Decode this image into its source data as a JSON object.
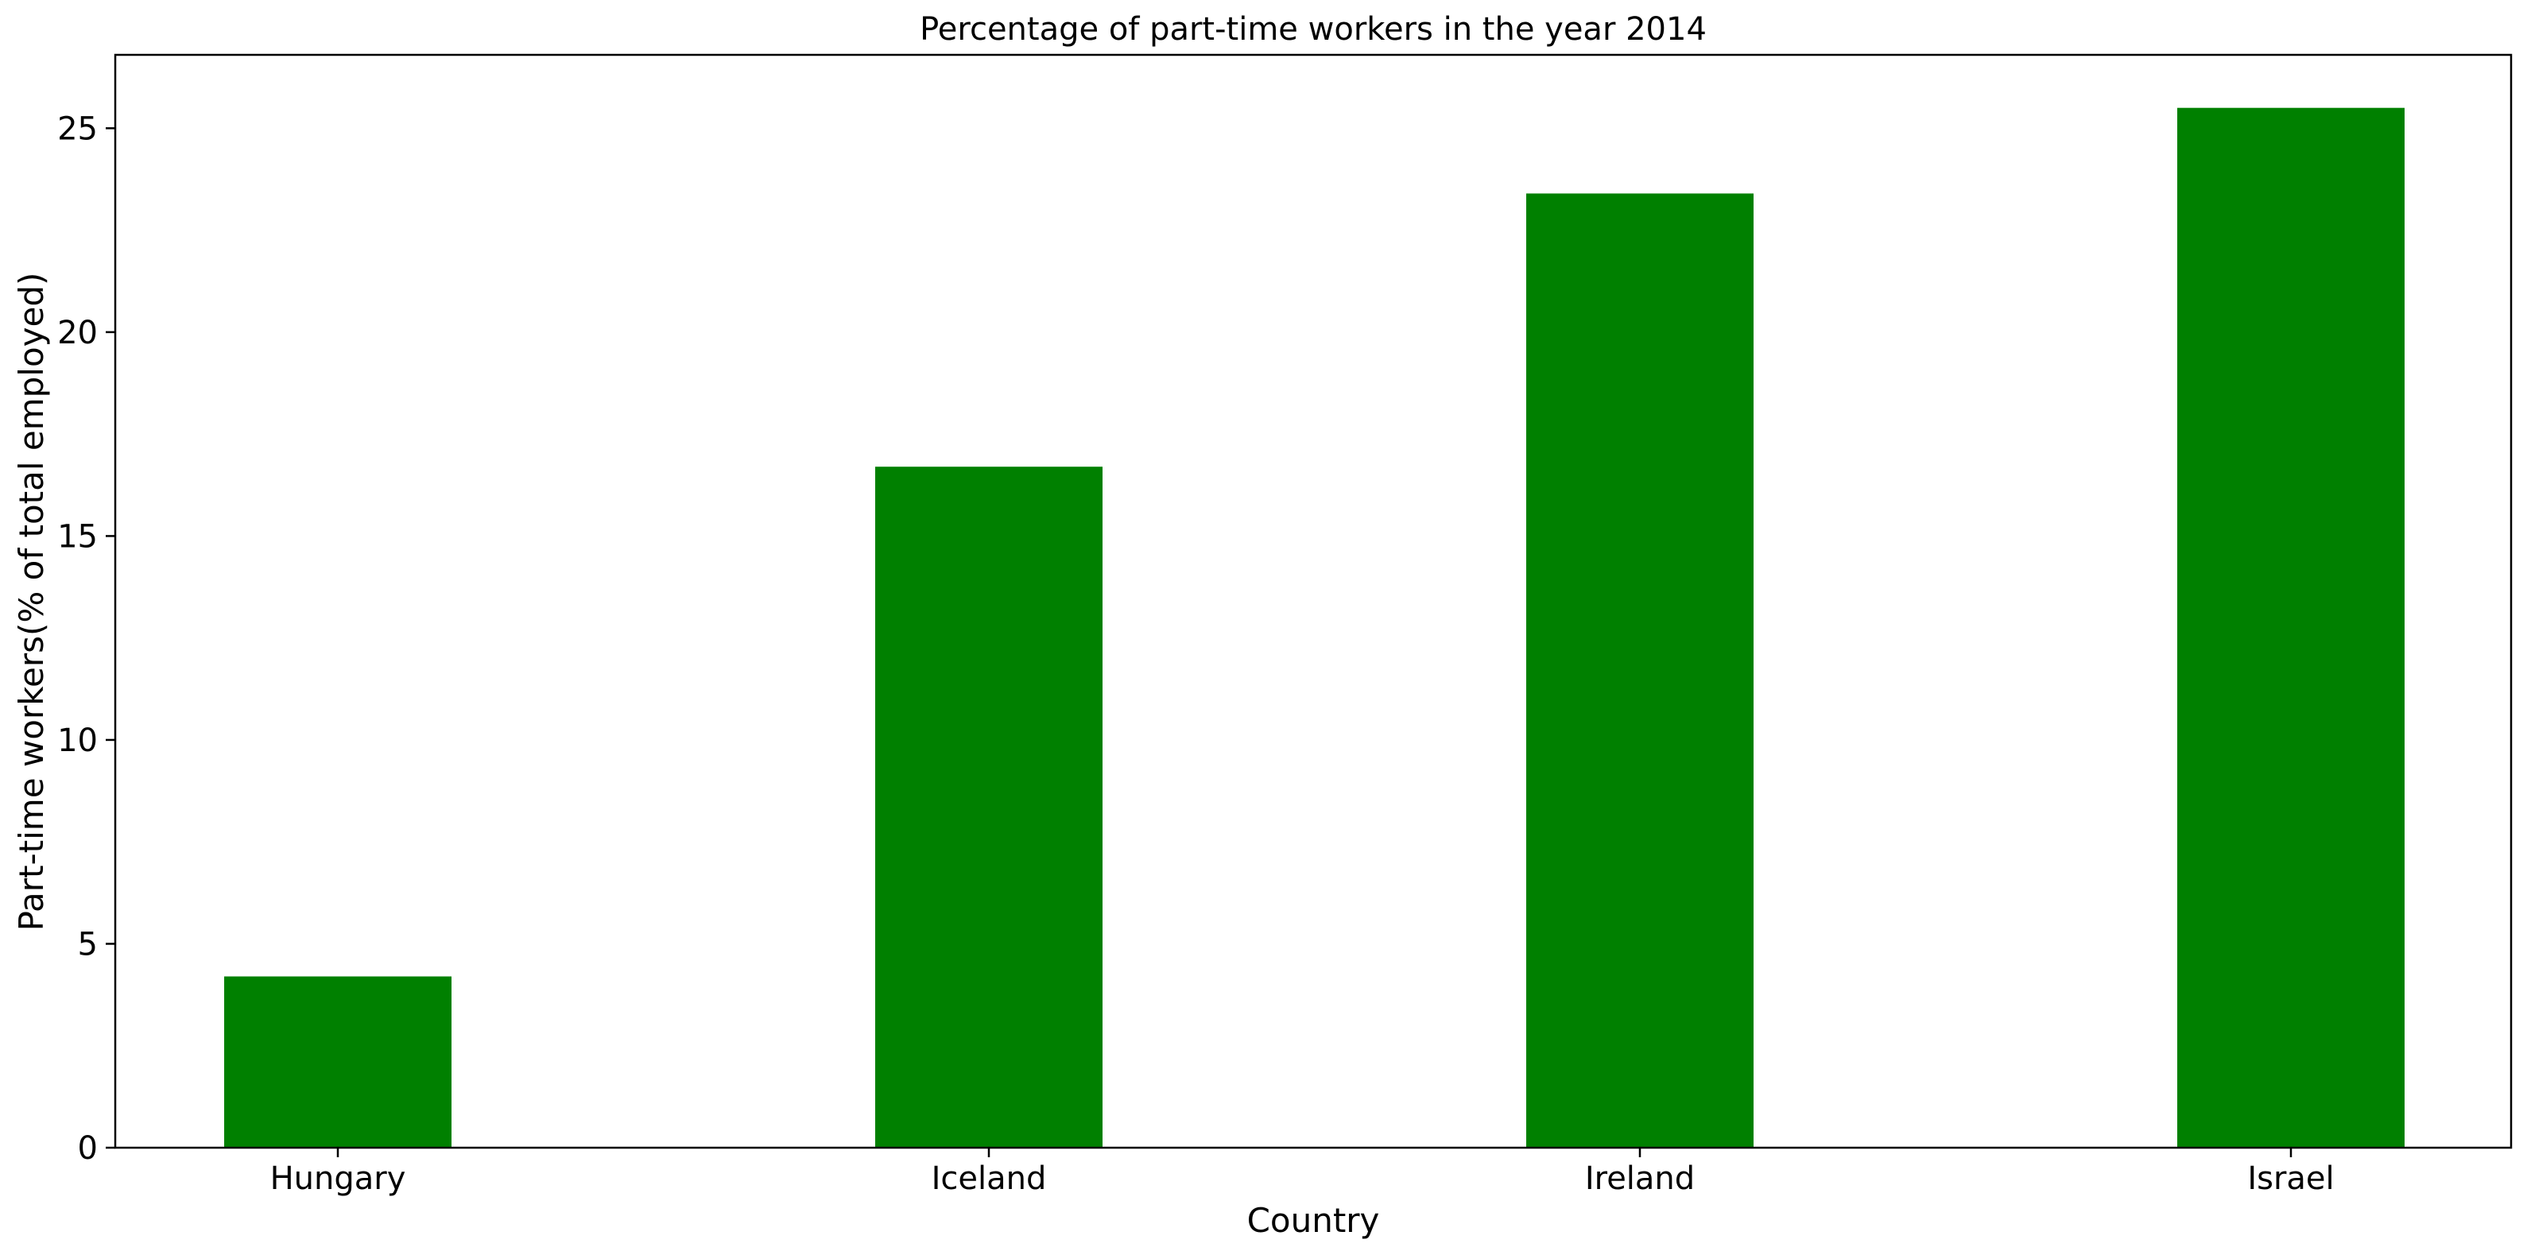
{
  "chart_data": {
    "type": "bar",
    "title": "Percentage of part-time workers in the year 2014",
    "xlabel": "Country",
    "ylabel": "Part-time workers(% of total employed)",
    "categories": [
      "Hungary",
      "Iceland",
      "Ireland",
      "Israel"
    ],
    "values": [
      4.2,
      16.7,
      23.4,
      25.5
    ],
    "ylim": [
      0,
      26.8
    ],
    "yticks": [
      0,
      5,
      10,
      15,
      20,
      25
    ],
    "bar_color": "#008000",
    "grid": false,
    "legend": "none"
  }
}
